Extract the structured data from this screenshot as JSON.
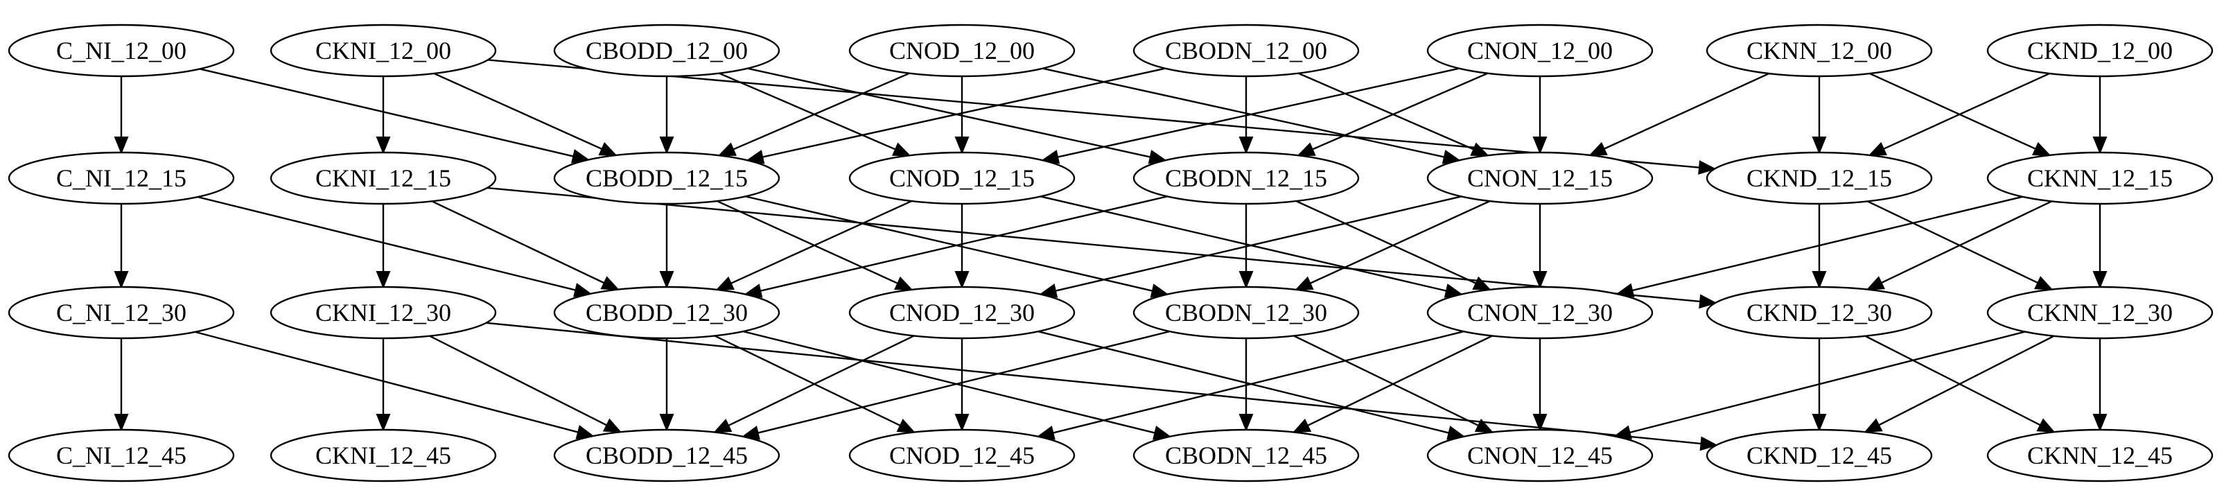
{
  "diagram": {
    "type": "directed-graph",
    "colors": {
      "background": "#ffffff",
      "stroke": "#000000",
      "text": "#000000"
    },
    "families": [
      {
        "id": "C_NI",
        "labels": [
          "C_NI_12_00",
          "C_NI_12_15",
          "C_NI_12_30",
          "C_NI_12_45"
        ]
      },
      {
        "id": "CKNI",
        "labels": [
          "CKNI_12_00",
          "CKNI_12_15",
          "CKNI_12_30",
          "CKNI_12_45"
        ]
      },
      {
        "id": "CBODD",
        "labels": [
          "CBODD_12_00",
          "CBODD_12_15",
          "CBODD_12_30",
          "CBODD_12_45"
        ]
      },
      {
        "id": "CNOD",
        "labels": [
          "CNOD_12_00",
          "CNOD_12_15",
          "CNOD_12_30",
          "CNOD_12_45"
        ]
      },
      {
        "id": "CBODN",
        "labels": [
          "CBODN_12_00",
          "CBODN_12_15",
          "CBODN_12_30",
          "CBODN_12_45"
        ]
      },
      {
        "id": "CNON",
        "labels": [
          "CNON_12_00",
          "CNON_12_15",
          "CNON_12_30",
          "CNON_12_45"
        ]
      },
      {
        "id": "CKNN",
        "labels": [
          "CKNN_12_00",
          "CKNN_12_15",
          "CKNN_12_30",
          "CKNN_12_45"
        ]
      },
      {
        "id": "CKND",
        "labels": [
          "CKND_12_00",
          "CKND_12_15",
          "CKND_12_30",
          "CKND_12_45"
        ]
      }
    ],
    "edge_pattern": [
      [
        "C_NI",
        "C_NI"
      ],
      [
        "C_NI",
        "CBODD"
      ],
      [
        "CKNI",
        "CKNI"
      ],
      [
        "CKNI",
        "CBODD"
      ],
      [
        "CKNI",
        "CKND"
      ],
      [
        "CBODD",
        "CBODD"
      ],
      [
        "CBODD",
        "CNOD"
      ],
      [
        "CBODD",
        "CBODN"
      ],
      [
        "CNOD",
        "CNOD"
      ],
      [
        "CNOD",
        "CBODD"
      ],
      [
        "CNOD",
        "CNON"
      ],
      [
        "CBODN",
        "CBODN"
      ],
      [
        "CBODN",
        "CBODD"
      ],
      [
        "CBODN",
        "CNON"
      ],
      [
        "CNON",
        "CNON"
      ],
      [
        "CNON",
        "CNOD"
      ],
      [
        "CNON",
        "CBODN"
      ],
      [
        "CKNN",
        "CKND"
      ],
      [
        "CKNN",
        "CKNN"
      ],
      [
        "CKNN",
        "CNON"
      ],
      [
        "CKND",
        "CKND"
      ],
      [
        "CKND",
        "CKNN"
      ]
    ],
    "time_levels": [
      "12_00",
      "12_15",
      "12_30",
      "12_45"
    ]
  }
}
